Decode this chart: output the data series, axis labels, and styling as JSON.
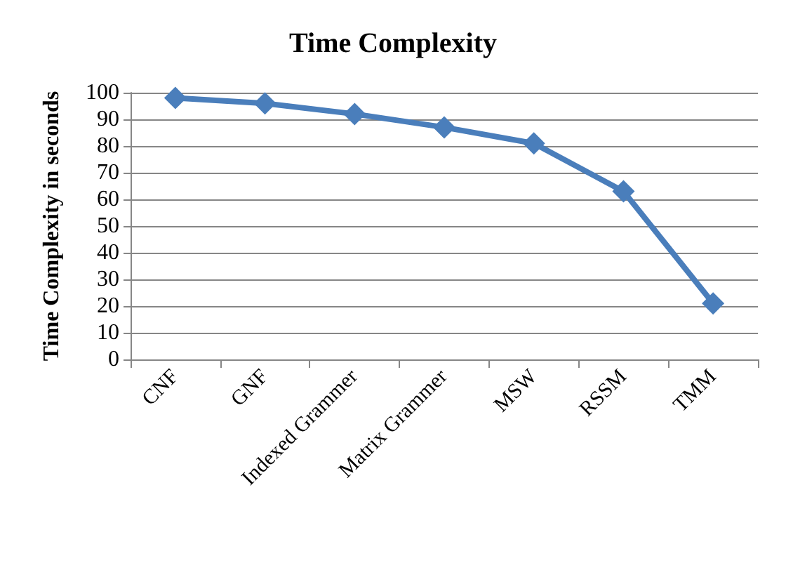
{
  "chart_data": {
    "type": "line",
    "title": "Time Complexity",
    "ylabel": "Time Complexity in seconds",
    "categories": [
      "CNF",
      "GNF",
      "Indexed Grammer",
      "Matrix Grammer",
      "MSW",
      "RSSM",
      "TMM"
    ],
    "series": [
      {
        "color": "#4a7ebb",
        "values": [
          98,
          96,
          92,
          87,
          81,
          63,
          21
        ]
      }
    ],
    "ylim": [
      0,
      100
    ],
    "yticks": [
      0,
      10,
      20,
      30,
      40,
      50,
      60,
      70,
      80,
      90,
      100
    ],
    "grid": "y",
    "marker": "diamond",
    "line_style": "solid"
  }
}
